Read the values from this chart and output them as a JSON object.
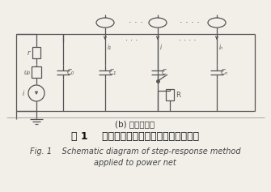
{
  "bg_color": "#f2efe9",
  "line_color": "#555555",
  "text_color": "#222222",
  "subtitle": "(b) 等效电路图",
  "title_cn": "图 1    阶跃响应法应用于电网的原理示意图",
  "title_en_line1": "Fig. 1    Schematic diagram of step-response method",
  "title_en_line2": "applied to power net",
  "label_u": "u₀",
  "label_r": "r",
  "label_i_src": "i",
  "label_c0": "C₀",
  "label_c1": "C₁",
  "label_c2": "C",
  "label_cn": "Cₙ",
  "label_R": "R",
  "label_i1": "i₁",
  "label_i2": "i",
  "label_in": "iₙ",
  "dots1": "· · ·",
  "dots2": "· · · ·"
}
